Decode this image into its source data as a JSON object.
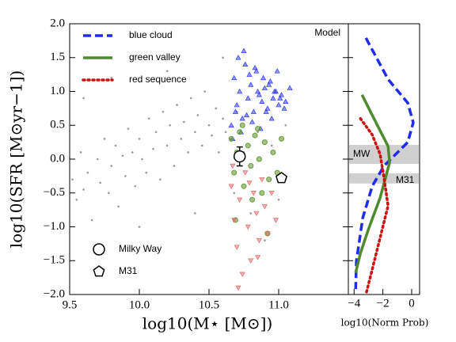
{
  "chart_data": [
    {
      "type": "scatter",
      "xlabel": "log10(M⋆ [M⊙])",
      "ylabel": "log10(SFR [M⊙yr−1])",
      "annotation": "Model",
      "xlim": [
        9.5,
        11.5
      ],
      "ylim": [
        -2.0,
        2.0
      ],
      "xticks": [
        9.5,
        {
          "value": 10,
          "label": "10.0"
        },
        10.5,
        {
          "value": 11,
          "label": "11.0"
        }
      ],
      "yticks": [
        {
          "value": -2,
          "label": "−2.0"
        },
        {
          "value": -1.5,
          "label": "−1.5"
        },
        {
          "value": -1,
          "label": "−1.0"
        },
        {
          "value": -0.5,
          "label": "−0.5"
        },
        {
          "value": 0,
          "label": "0.0"
        },
        0.5,
        {
          "value": 1,
          "label": "1.0"
        },
        1.5,
        {
          "value": 2,
          "label": "2.0"
        }
      ],
      "series": [
        {
          "color": "#999999",
          "marker": "dot",
          "x": [
            9.52,
            9.55,
            9.58,
            9.6,
            9.63,
            9.66,
            9.7,
            9.72,
            9.75,
            9.78,
            9.8,
            9.83,
            9.85,
            9.88,
            9.9,
            9.92,
            9.95,
            9.97,
            10.0,
            10.02,
            10.05,
            10.07,
            10.1,
            10.12,
            10.15,
            10.17,
            10.2,
            10.22,
            10.25,
            10.27,
            10.3,
            10.32,
            10.35,
            10.37,
            10.4,
            10.42,
            10.45,
            10.47,
            10.5,
            10.52,
            10.55,
            10.57,
            10.6,
            10.62,
            10.65,
            10.68,
            10.7,
            10.75,
            10.8,
            10.85,
            10.9,
            10.95,
            11.0,
            11.05,
            9.6,
            9.8,
            10.0,
            10.2,
            10.4,
            10.6
          ],
          "y": [
            -0.3,
            -0.6,
            0.1,
            -0.45,
            -0.2,
            -0.9,
            0.0,
            -0.35,
            0.3,
            -0.5,
            -0.1,
            0.2,
            -0.7,
            0.05,
            -0.25,
            0.45,
            0.1,
            -0.4,
            0.3,
            0.0,
            -0.2,
            0.6,
            0.15,
            0.4,
            -0.3,
            0.7,
            0.2,
            0.5,
            -0.1,
            0.8,
            0.3,
            0.55,
            0.1,
            0.9,
            0.4,
            0.65,
            0.2,
            1.0,
            0.5,
            0.35,
            0.75,
            0.1,
            0.6,
            0.4,
            0.3,
            -0.5,
            0.7,
            0.1,
            -0.8,
            0.4,
            -1.2,
            0.2,
            -0.6,
            0.5,
            0.9,
            1.2,
            -1.0,
            1.3,
            -0.8,
            1.5
          ]
        },
        {
          "color": "#1f2cf0",
          "marker": "triangle-up",
          "x": [
            10.66,
            10.68,
            10.7,
            10.72,
            10.74,
            10.76,
            10.78,
            10.8,
            10.82,
            10.84,
            10.86,
            10.88,
            10.9,
            10.92,
            10.94,
            10.96,
            10.98,
            11.0,
            11.02,
            11.05,
            10.67,
            10.69,
            10.71,
            10.73,
            10.75,
            10.77,
            10.79,
            10.81,
            10.83,
            10.85,
            10.87,
            10.89,
            10.91,
            10.93,
            10.95,
            10.97,
            10.99,
            11.01,
            11.04,
            11.08
          ],
          "y": [
            0.5,
            1.2,
            0.8,
            1.0,
            0.6,
            1.4,
            0.9,
            1.1,
            0.7,
            1.3,
            0.95,
            0.85,
            1.05,
            0.75,
            1.15,
            0.9,
            1.0,
            0.8,
            0.95,
            0.85,
            0.3,
            0.7,
            1.5,
            0.4,
            1.6,
            0.65,
            1.25,
            0.55,
            1.35,
            1.0,
            0.45,
            1.2,
            0.7,
            1.1,
            0.6,
            1.0,
            1.3,
            0.9,
            0.75,
            1.05
          ]
        },
        {
          "color": "#6a9a3a",
          "marker": "circle",
          "x": [
            10.66,
            10.68,
            10.7,
            10.72,
            10.75,
            10.78,
            10.8,
            10.83,
            10.86,
            10.88,
            10.9,
            10.93,
            10.96,
            10.99,
            11.02,
            10.69,
            10.74,
            10.81,
            10.85,
            10.92
          ],
          "y": [
            0.3,
            -0.2,
            0.1,
            0.4,
            -0.4,
            0.2,
            -0.1,
            0.35,
            0.0,
            -0.5,
            0.25,
            -0.3,
            0.1,
            -0.2,
            0.3,
            -0.9,
            0.5,
            -0.6,
            0.45,
            -1.1
          ]
        },
        {
          "color": "#e06060",
          "marker": "triangle-down",
          "x": [
            10.66,
            10.68,
            10.7,
            10.72,
            10.74,
            10.76,
            10.78,
            10.8,
            10.82,
            10.84,
            10.86,
            10.88,
            10.9,
            10.92,
            10.95,
            10.98,
            10.71,
            10.79,
            10.85,
            10.67
          ],
          "y": [
            -0.4,
            -0.9,
            -1.3,
            -0.6,
            -1.7,
            -0.2,
            -1.0,
            -1.5,
            -0.5,
            -0.8,
            -1.2,
            -0.3,
            -0.7,
            -1.1,
            -0.5,
            -0.9,
            -1.9,
            -0.35,
            -1.45,
            -0.1
          ]
        }
      ],
      "points": [
        {
          "name": "Milky Way",
          "marker": "circle",
          "x": 10.72,
          "y": 0.04,
          "yerr": 0.14
        },
        {
          "name": "M31",
          "marker": "pentagon",
          "x": 11.02,
          "y": -0.28
        }
      ]
    },
    {
      "type": "line",
      "xlabel": "log10(Norm Prob)",
      "xlim": [
        -4.4,
        0.55
      ],
      "ylim": [
        -2.0,
        2.0
      ],
      "xticks": [
        {
          "value": -4,
          "label": "−4"
        },
        {
          "value": -2,
          "label": "−2"
        },
        0
      ],
      "bands": [
        {
          "label": "MW",
          "range": [
            -0.07,
            0.21
          ]
        },
        {
          "label": "M31",
          "range": [
            -0.36,
            -0.21
          ]
        }
      ],
      "series": [
        {
          "name": "blue cloud",
          "color": "#1f2cf0",
          "style": "dashed",
          "x": [
            -3.18,
            -1.64,
            -0.27,
            0.11,
            -0.27,
            -1.92,
            -2.74,
            -3.4,
            -3.84,
            -3.89
          ],
          "y": [
            1.79,
            1.18,
            0.83,
            0.54,
            0.25,
            -0.1,
            -0.4,
            -0.87,
            -1.51,
            -1.92
          ]
        },
        {
          "name": "green valley",
          "color": "#4e8a2e",
          "style": "solid",
          "x": [
            -3.45,
            -2.74,
            -1.64,
            -1.53,
            -2.19,
            -3.01,
            -3.56,
            -3.89
          ],
          "y": [
            0.95,
            0.65,
            0.19,
            -0.05,
            -0.57,
            -1.04,
            -1.39,
            -1.68
          ]
        },
        {
          "name": "red sequence",
          "color": "#cc1111",
          "style": "dotted",
          "x": [
            -3.56,
            -2.74,
            -2.19,
            -1.92,
            -1.64,
            -2.19,
            -2.74,
            -3.18
          ],
          "y": [
            0.6,
            0.36,
            0.07,
            -0.28,
            -0.69,
            -1.16,
            -1.63,
            -2.0
          ]
        }
      ]
    }
  ]
}
